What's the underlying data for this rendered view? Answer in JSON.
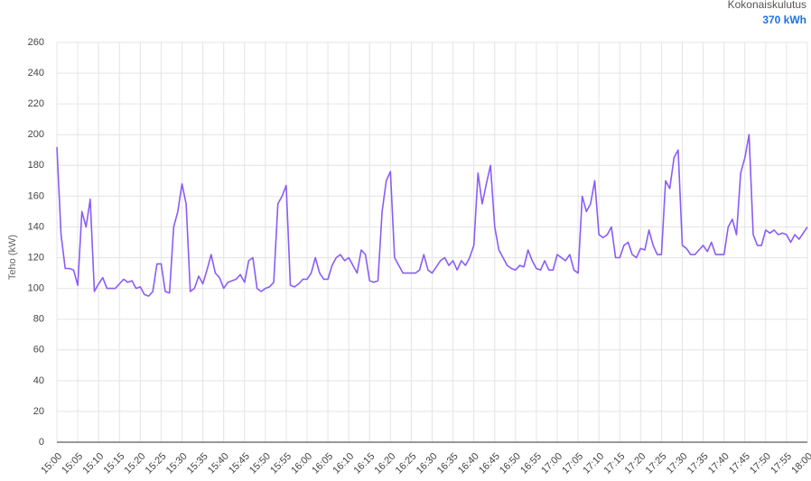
{
  "chart_data": {
    "type": "line",
    "summary_label": "Kokonaiskulutus",
    "summary_value": "370 kWh",
    "y_label": "Teho (kW)",
    "color": "#8b5cf6",
    "categories": [
      "15:00",
      null,
      null,
      null,
      null,
      "15:05",
      null,
      null,
      null,
      null,
      "15:10",
      null,
      null,
      null,
      null,
      "15:15",
      null,
      null,
      null,
      null,
      "15:20",
      null,
      null,
      null,
      null,
      "15:25",
      null,
      null,
      null,
      null,
      "15:30",
      null,
      null,
      null,
      null,
      "15:35",
      null,
      null,
      null,
      null,
      "15:40",
      null,
      null,
      null,
      null,
      "15:45",
      null,
      null,
      null,
      null,
      "15:50",
      null,
      null,
      null,
      null,
      "15:55",
      null,
      null,
      null,
      null,
      "16:00",
      null,
      null,
      null,
      null,
      "16:05",
      null,
      null,
      null,
      null,
      "16:10",
      null,
      null,
      null,
      null,
      "16:15",
      null,
      null,
      null,
      null,
      "16:20",
      null,
      null,
      null,
      null,
      "16:25",
      null,
      null,
      null,
      null,
      "16:30",
      null,
      null,
      null,
      null,
      "16:35",
      null,
      null,
      null,
      null,
      "16:40",
      null,
      null,
      null,
      null,
      "16:45",
      null,
      null,
      null,
      null,
      "16:50",
      null,
      null,
      null,
      null,
      "16:55",
      null,
      null,
      null,
      null,
      "17:00",
      null,
      null,
      null,
      null,
      "17:05",
      null,
      null,
      null,
      null,
      "17:10",
      null,
      null,
      null,
      null,
      "17:15",
      null,
      null,
      null,
      null,
      "17:20",
      null,
      null,
      null,
      null,
      "17:25",
      null,
      null,
      null,
      null,
      "17:30",
      null,
      null,
      null,
      null,
      "17:35",
      null,
      null,
      null,
      null,
      "17:40",
      null,
      null,
      null,
      null,
      "17:45",
      null,
      null,
      null,
      null,
      "17:50",
      null,
      null,
      null,
      null,
      "17:55",
      null,
      null,
      null,
      null,
      "18:00"
    ],
    "values": [
      192,
      135,
      113,
      113,
      112,
      102,
      150,
      140,
      158,
      98,
      103,
      107,
      100,
      100,
      100,
      103,
      106,
      104,
      105,
      100,
      101,
      96,
      95,
      98,
      116,
      116,
      98,
      97,
      140,
      150,
      168,
      155,
      98,
      100,
      108,
      103,
      112,
      122,
      110,
      107,
      100,
      104,
      105,
      106,
      109,
      104,
      118,
      120,
      100,
      98,
      100,
      101,
      104,
      155,
      160,
      167,
      102,
      101,
      103,
      106,
      106,
      110,
      120,
      110,
      106,
      106,
      115,
      120,
      122,
      118,
      120,
      115,
      110,
      125,
      122,
      105,
      104,
      105,
      150,
      170,
      176,
      120,
      115,
      110,
      110,
      110,
      110,
      112,
      122,
      112,
      110,
      114,
      118,
      120,
      115,
      118,
      112,
      118,
      115,
      120,
      128,
      175,
      155,
      168,
      180,
      140,
      125,
      120,
      115,
      113,
      112,
      115,
      114,
      125,
      118,
      113,
      112,
      118,
      112,
      112,
      122,
      120,
      118,
      122,
      112,
      110,
      160,
      150,
      155,
      170,
      135,
      133,
      135,
      140,
      120,
      120,
      128,
      130,
      122,
      120,
      126,
      125,
      138,
      128,
      122,
      122,
      170,
      165,
      185,
      190,
      128,
      126,
      122,
      122,
      125,
      128,
      124,
      130,
      122,
      122,
      122,
      140,
      145,
      135,
      175,
      185,
      200,
      135,
      128,
      128,
      138,
      136,
      138,
      135,
      136,
      135,
      130,
      135,
      132,
      136,
      140
    ],
    "ylim": [
      0,
      260
    ],
    "yticks": [
      0,
      20,
      40,
      60,
      80,
      100,
      120,
      140,
      160,
      180,
      200,
      220,
      240,
      260
    ],
    "grid": true
  }
}
